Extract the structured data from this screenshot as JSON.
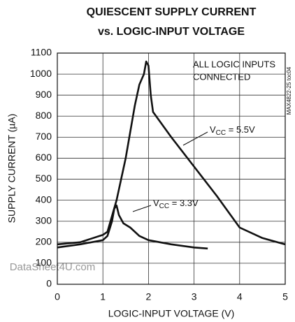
{
  "chart_data": {
    "type": "line",
    "title": [
      "QUIESCENT SUPPLY CURRENT",
      "vs. LOGIC-INPUT VOLTAGE"
    ],
    "xlabel": "LOGIC-INPUT VOLTAGE (V)",
    "ylabel": "SUPPLY CURRENT (µA)",
    "xlim": [
      0,
      5
    ],
    "xticks": [
      0,
      1,
      2,
      3,
      4,
      5
    ],
    "ylim": [
      0,
      1100
    ],
    "yticks": [
      0,
      100,
      200,
      300,
      400,
      500,
      600,
      700,
      800,
      900,
      1000,
      1100
    ],
    "grid": true,
    "annotations": [
      "ALL LOGIC INPUTS",
      "CONNECTED"
    ],
    "figure_id": "MAX4822-25 toc04",
    "watermark": "DataSheet4U.com",
    "series": [
      {
        "label": {
          "v": "V",
          "sub": "CC",
          "rest": " = 5.5V"
        },
        "color": "#111111",
        "x": [
          0,
          0.5,
          1,
          1.1,
          1.3,
          1.5,
          1.7,
          1.8,
          1.9,
          1.95,
          2.0,
          2.05,
          2.1,
          2.5,
          3,
          3.5,
          4,
          4.5,
          5
        ],
        "values": [
          190,
          200,
          235,
          250,
          400,
          600,
          850,
          950,
          1000,
          1060,
          1040,
          900,
          820,
          700,
          560,
          420,
          270,
          220,
          190
        ]
      },
      {
        "label": {
          "v": "V",
          "sub": "CC",
          "rest": " = 3.3V"
        },
        "color": "#111111",
        "x": [
          0,
          0.5,
          1,
          1.1,
          1.2,
          1.25,
          1.3,
          1.35,
          1.45,
          1.6,
          1.8,
          2,
          2.5,
          3,
          3.3
        ],
        "values": [
          175,
          190,
          210,
          230,
          300,
          360,
          375,
          330,
          290,
          270,
          230,
          210,
          190,
          175,
          170
        ]
      }
    ]
  }
}
